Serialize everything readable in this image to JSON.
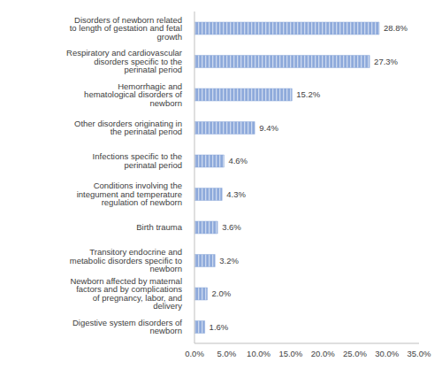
{
  "chart_data": {
    "type": "bar",
    "orientation": "horizontal",
    "categories": [
      "Disorders of newborn related to length of gestation and fetal growth",
      "Respiratory and cardiovascular disorders specific to the perinatal period",
      "Hemorrhagic and hematological disorders of newborn",
      "Other disorders originating in the perinatal period",
      "Infections specific to the perinatal period",
      "Conditions involving the integument and temperature regulation of newborn",
      "Birth trauma",
      "Transitory endocrine and metabolic disorders specific to newborn",
      "Newborn affected by maternal factors and by complications of pregnancy, labor, and delivery",
      "Digestive system disorders of newborn"
    ],
    "values": [
      28.8,
      27.3,
      15.2,
      9.4,
      4.6,
      4.3,
      3.6,
      3.2,
      2.0,
      1.6
    ],
    "value_labels": [
      "28.8%",
      "27.3%",
      "15.2%",
      "9.4%",
      "4.6%",
      "4.3%",
      "3.6%",
      "3.2%",
      "2.0%",
      "1.6%"
    ],
    "data_labels": true,
    "color": "#8eaadb",
    "xlim": [
      0,
      35
    ],
    "xticks": [
      {
        "value": 0,
        "label": "0.0%"
      },
      {
        "value": 5,
        "label": "5.0%"
      },
      {
        "value": 10,
        "label": "10.0%"
      },
      {
        "value": 15,
        "label": "15.0%"
      },
      {
        "value": 20,
        "label": "20.0%"
      },
      {
        "value": 25,
        "label": "25.0%"
      },
      {
        "value": 30,
        "label": "30.0%"
      },
      {
        "value": 35,
        "label": "35.0%"
      }
    ],
    "grid": false
  }
}
